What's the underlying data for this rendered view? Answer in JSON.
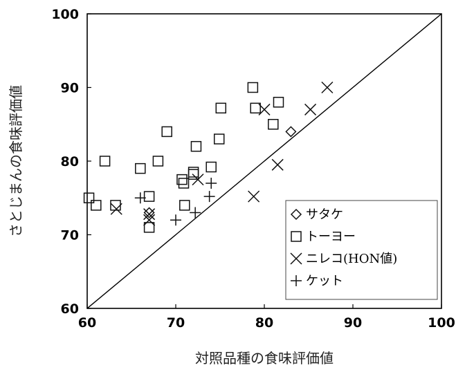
{
  "chart_data": {
    "type": "scatter",
    "title": "",
    "xlabel": "対照品種の食味評価値",
    "ylabel": "さとじまんの食味評価値",
    "xlim": [
      60,
      100
    ],
    "ylim": [
      60,
      100
    ],
    "xticks": [
      60,
      70,
      80,
      90,
      100
    ],
    "yticks": [
      60,
      70,
      80,
      90,
      100
    ],
    "grid": false,
    "legend_position": "bottom-right",
    "reference_line": {
      "from": [
        60,
        60
      ],
      "to": [
        100,
        100
      ]
    },
    "series": [
      {
        "name": "サタケ",
        "marker": "diamond",
        "points": [
          [
            83,
            84
          ],
          [
            67,
            73
          ]
        ]
      },
      {
        "name": "トーヨー",
        "marker": "square",
        "points": [
          [
            60.2,
            75
          ],
          [
            61,
            74
          ],
          [
            62,
            80
          ],
          [
            63.2,
            74
          ],
          [
            66,
            79
          ],
          [
            67,
            75.2
          ],
          [
            67,
            71
          ],
          [
            68,
            80
          ],
          [
            69,
            84
          ],
          [
            70.7,
            77.5
          ],
          [
            70.9,
            77
          ],
          [
            71,
            74
          ],
          [
            72,
            78.2
          ],
          [
            72,
            78.5
          ],
          [
            72.3,
            82
          ],
          [
            74,
            79.2
          ],
          [
            74.9,
            83
          ],
          [
            75.1,
            87.2
          ],
          [
            78.7,
            90
          ],
          [
            79,
            87.2
          ],
          [
            81,
            85
          ],
          [
            81.6,
            88
          ]
        ]
      },
      {
        "name": "ニレコ(HON値)",
        "marker": "cross",
        "points": [
          [
            63.3,
            73.5
          ],
          [
            67,
            72
          ],
          [
            67,
            72.8
          ],
          [
            72.5,
            77.5
          ],
          [
            78.8,
            75.2
          ],
          [
            80,
            87
          ],
          [
            81.5,
            79.5
          ],
          [
            85.2,
            87
          ],
          [
            87.1,
            90
          ]
        ]
      },
      {
        "name": "ケット",
        "marker": "plus",
        "points": [
          [
            66,
            75
          ],
          [
            70,
            72
          ],
          [
            72.2,
            73
          ],
          [
            73.8,
            75.2
          ],
          [
            74,
            77
          ]
        ]
      }
    ]
  }
}
